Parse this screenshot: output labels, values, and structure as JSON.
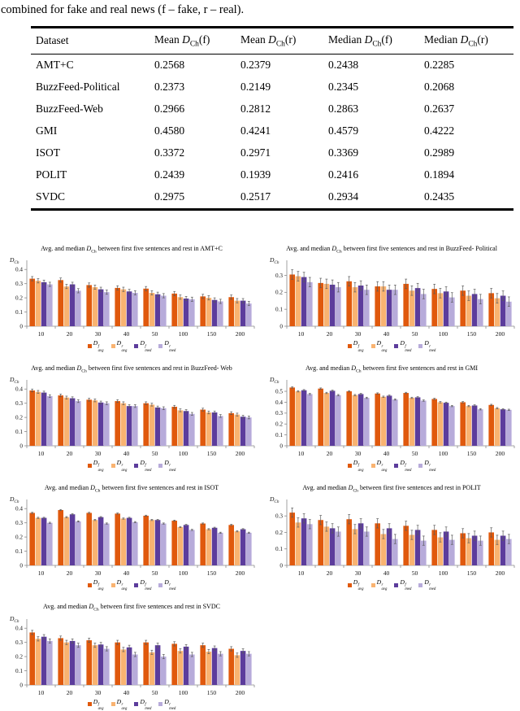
{
  "page": {
    "top_text": "combined for fake and real news (f – fake, r – real)."
  },
  "table": {
    "headers": [
      "Dataset",
      "Mean D_Ch(f)",
      "Mean D_Ch(r)",
      "Median D_Ch(f)",
      "Median D_Ch(r)"
    ],
    "rows": [
      [
        "AMT+C",
        "0.2568",
        "0.2379",
        "0.2438",
        "0.2285"
      ],
      [
        "BuzzFeed-Political",
        "0.2373",
        "0.2149",
        "0.2345",
        "0.2068"
      ],
      [
        "BuzzFeed-Web",
        "0.2966",
        "0.2812",
        "0.2863",
        "0.2637"
      ],
      [
        "GMI",
        "0.4580",
        "0.4241",
        "0.4579",
        "0.4222"
      ],
      [
        "ISOT",
        "0.3372",
        "0.2971",
        "0.3369",
        "0.2989"
      ],
      [
        "POLIT",
        "0.2439",
        "0.1939",
        "0.2416",
        "0.1894"
      ],
      [
        "SVDC",
        "0.2975",
        "0.2517",
        "0.2934",
        "0.2435"
      ]
    ]
  },
  "series_defs": [
    {
      "name": "D_avg_f",
      "base": "D",
      "sup": "f",
      "sub": "avg",
      "color": "#E0590D"
    },
    {
      "name": "D_avg_r",
      "base": "D",
      "sup": "r",
      "sub": "avg",
      "color": "#F9B371"
    },
    {
      "name": "D_med_f",
      "base": "D",
      "sup": "f",
      "sub": "med",
      "color": "#5C3C9C"
    },
    {
      "name": "D_med_r",
      "base": "D",
      "sup": "r",
      "sub": "med",
      "color": "#B7ABDA"
    }
  ],
  "error_bar_color": "#5a5a5a",
  "axis_color": "#8a8a8a",
  "chart_data": [
    {
      "type": "bar",
      "title": "Avg. and median D_Ch between first five sentences and rest in AMT+C",
      "dataset": "AMT+C",
      "ylabel": "D_Ch",
      "categories": [
        "10",
        "20",
        "30",
        "40",
        "50",
        "100",
        "150",
        "200"
      ],
      "yticks": [
        0,
        0.1,
        0.2,
        0.3,
        0.4
      ],
      "ylim": [
        0,
        0.43
      ],
      "err": 0.015,
      "legend_position": "bottom",
      "series": [
        {
          "name": "D_avg_f",
          "values": [
            0.335,
            0.325,
            0.29,
            0.27,
            0.265,
            0.23,
            0.21,
            0.205
          ]
        },
        {
          "name": "D_avg_r",
          "values": [
            0.32,
            0.28,
            0.275,
            0.26,
            0.235,
            0.205,
            0.2,
            0.18
          ]
        },
        {
          "name": "D_med_f",
          "values": [
            0.31,
            0.295,
            0.26,
            0.245,
            0.225,
            0.195,
            0.185,
            0.18
          ]
        },
        {
          "name": "D_med_r",
          "values": [
            0.295,
            0.25,
            0.24,
            0.235,
            0.215,
            0.19,
            0.175,
            0.16
          ]
        }
      ]
    },
    {
      "type": "bar",
      "title": "Avg. and median D_Ch between first five sentences and rest in BuzzFeed- Political",
      "dataset": "BuzzFeed-Political",
      "ylabel": "D_Ch",
      "categories": [
        "10",
        "20",
        "30",
        "40",
        "50",
        "100",
        "150",
        "200"
      ],
      "yticks": [
        0,
        0.1,
        0.2,
        0.3
      ],
      "ylim": [
        0,
        0.36
      ],
      "err": 0.028,
      "legend_position": "bottom",
      "series": [
        {
          "name": "D_avg_f",
          "values": [
            0.305,
            0.255,
            0.265,
            0.235,
            0.25,
            0.22,
            0.21,
            0.195
          ]
        },
        {
          "name": "D_avg_r",
          "values": [
            0.295,
            0.25,
            0.23,
            0.235,
            0.21,
            0.195,
            0.18,
            0.165
          ]
        },
        {
          "name": "D_med_f",
          "values": [
            0.29,
            0.245,
            0.24,
            0.215,
            0.225,
            0.205,
            0.19,
            0.18
          ]
        },
        {
          "name": "D_med_r",
          "values": [
            0.26,
            0.23,
            0.215,
            0.215,
            0.19,
            0.17,
            0.16,
            0.145
          ]
        }
      ]
    },
    {
      "type": "bar",
      "title": "Avg. and median D_Ch between first five sentences and rest in BuzzFeed- Web",
      "dataset": "BuzzFeed-Web",
      "ylabel": "D_Ch",
      "categories": [
        "10",
        "20",
        "30",
        "40",
        "50",
        "100",
        "150",
        "200"
      ],
      "yticks": [
        0,
        0.1,
        0.2,
        0.3,
        0.4
      ],
      "ylim": [
        0,
        0.43
      ],
      "err": 0.01,
      "legend_position": "bottom",
      "series": [
        {
          "name": "D_avg_f",
          "values": [
            0.39,
            0.355,
            0.325,
            0.315,
            0.3,
            0.275,
            0.255,
            0.23
          ]
        },
        {
          "name": "D_avg_r",
          "values": [
            0.38,
            0.34,
            0.32,
            0.3,
            0.29,
            0.25,
            0.235,
            0.22
          ]
        },
        {
          "name": "D_med_f",
          "values": [
            0.375,
            0.335,
            0.305,
            0.28,
            0.27,
            0.245,
            0.235,
            0.205
          ]
        },
        {
          "name": "D_med_r",
          "values": [
            0.35,
            0.315,
            0.3,
            0.28,
            0.265,
            0.225,
            0.21,
            0.2
          ]
        }
      ]
    },
    {
      "type": "bar",
      "title": "Avg. and median D_Ch between first five sentences and rest in GMI",
      "dataset": "GMI",
      "ylabel": "D_Ch",
      "categories": [
        "10",
        "20",
        "30",
        "40",
        "50",
        "100",
        "150",
        "200"
      ],
      "yticks": [
        0,
        0.1,
        0.2,
        0.3,
        0.4,
        0.5
      ],
      "ylim": [
        0,
        0.56
      ],
      "err": 0.006,
      "legend_position": "bottom",
      "series": [
        {
          "name": "D_avg_f",
          "values": [
            0.535,
            0.525,
            0.5,
            0.48,
            0.485,
            0.43,
            0.4,
            0.375
          ]
        },
        {
          "name": "D_avg_r",
          "values": [
            0.5,
            0.485,
            0.465,
            0.45,
            0.44,
            0.4,
            0.365,
            0.345
          ]
        },
        {
          "name": "D_med_f",
          "values": [
            0.51,
            0.505,
            0.475,
            0.46,
            0.445,
            0.395,
            0.37,
            0.335
          ]
        },
        {
          "name": "D_med_r",
          "values": [
            0.475,
            0.465,
            0.44,
            0.425,
            0.415,
            0.365,
            0.335,
            0.33
          ]
        }
      ]
    },
    {
      "type": "bar",
      "title": "Avg. and median D_Ch between first five sentences and rest in ISOT",
      "dataset": "ISOT",
      "ylabel": "D_Ch",
      "categories": [
        "10",
        "20",
        "30",
        "40",
        "50",
        "100",
        "150",
        "200"
      ],
      "yticks": [
        0,
        0.1,
        0.2,
        0.3,
        0.4
      ],
      "ylim": [
        0,
        0.43
      ],
      "err": 0.004,
      "legend_position": "bottom",
      "series": [
        {
          "name": "D_avg_f",
          "values": [
            0.37,
            0.39,
            0.37,
            0.365,
            0.35,
            0.315,
            0.295,
            0.285
          ]
        },
        {
          "name": "D_avg_r",
          "values": [
            0.335,
            0.34,
            0.32,
            0.33,
            0.32,
            0.27,
            0.255,
            0.24
          ]
        },
        {
          "name": "D_med_f",
          "values": [
            0.335,
            0.36,
            0.34,
            0.335,
            0.32,
            0.285,
            0.265,
            0.255
          ]
        },
        {
          "name": "D_med_r",
          "values": [
            0.3,
            0.31,
            0.295,
            0.305,
            0.295,
            0.25,
            0.23,
            0.23
          ]
        }
      ]
    },
    {
      "type": "bar",
      "title": "Avg. and median D_Ch between first five sentences and rest in POLIT",
      "dataset": "POLIT",
      "ylabel": "D_Ch",
      "categories": [
        "10",
        "20",
        "30",
        "40",
        "50",
        "100",
        "150",
        "200"
      ],
      "yticks": [
        0,
        0.1,
        0.2,
        0.3
      ],
      "ylim": [
        0,
        0.37
      ],
      "err": 0.028,
      "legend_position": "bottom",
      "series": [
        {
          "name": "D_avg_f",
          "values": [
            0.32,
            0.275,
            0.28,
            0.255,
            0.24,
            0.215,
            0.195,
            0.2
          ]
        },
        {
          "name": "D_avg_r",
          "values": [
            0.26,
            0.235,
            0.22,
            0.19,
            0.185,
            0.17,
            0.165,
            0.155
          ]
        },
        {
          "name": "D_med_f",
          "values": [
            0.285,
            0.225,
            0.255,
            0.225,
            0.215,
            0.205,
            0.18,
            0.18
          ]
        },
        {
          "name": "D_med_r",
          "values": [
            0.25,
            0.205,
            0.205,
            0.16,
            0.15,
            0.155,
            0.15,
            0.16
          ]
        }
      ]
    },
    {
      "type": "bar",
      "title": "Avg. and median D_Ch between first five sentences and rest in SVDC",
      "dataset": "SVDC",
      "ylabel": "D_Ch",
      "categories": [
        "10",
        "20",
        "30",
        "40",
        "50",
        "100",
        "150",
        "200"
      ],
      "yticks": [
        0,
        0.1,
        0.2,
        0.3,
        0.4
      ],
      "ylim": [
        0,
        0.43
      ],
      "err": 0.015,
      "legend_position": "bottom",
      "series": [
        {
          "name": "D_avg_f",
          "values": [
            0.37,
            0.33,
            0.315,
            0.3,
            0.3,
            0.29,
            0.28,
            0.255
          ]
        },
        {
          "name": "D_avg_r",
          "values": [
            0.325,
            0.3,
            0.28,
            0.25,
            0.23,
            0.24,
            0.235,
            0.21
          ]
        },
        {
          "name": "D_med_f",
          "values": [
            0.34,
            0.31,
            0.285,
            0.265,
            0.28,
            0.27,
            0.26,
            0.24
          ]
        },
        {
          "name": "D_med_r",
          "values": [
            0.31,
            0.28,
            0.255,
            0.215,
            0.2,
            0.215,
            0.22,
            0.22
          ]
        }
      ]
    }
  ]
}
